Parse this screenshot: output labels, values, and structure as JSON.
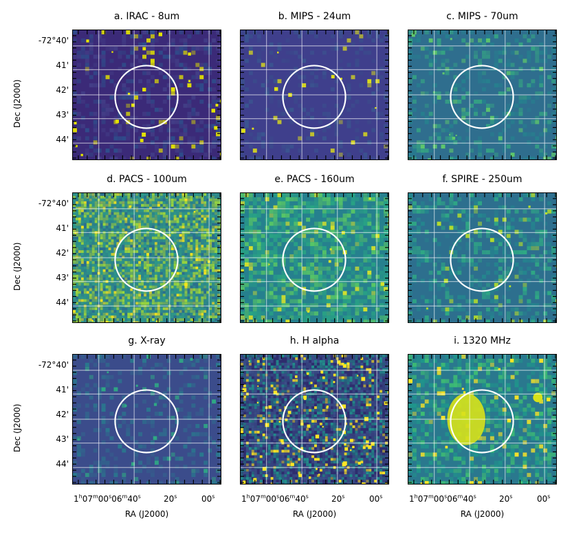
{
  "panels": [
    {
      "title": "a. IRAC - 8um",
      "colors": [
        "#3b2a78",
        "#433e87",
        "#2f4d8b"
      ],
      "speck": "#e4e400",
      "noise": 0.35
    },
    {
      "title": "b. MIPS - 24um",
      "colors": [
        "#3f3f8c",
        "#3a4c8c",
        "#3a5690"
      ],
      "speck": "#e0e018",
      "noise": 0.2
    },
    {
      "title": "c. MIPS - 70um",
      "colors": [
        "#2f6e8e",
        "#26808e",
        "#35a283"
      ],
      "speck": "#5fc86b",
      "noise": 0.3
    },
    {
      "title": "d. PACS - 100um",
      "colors": [
        "#2a6f8e",
        "#2f9b87",
        "#9ad73c"
      ],
      "speck": "#f2e51e",
      "noise": 0.9
    },
    {
      "title": "e. PACS - 160um",
      "colors": [
        "#26808e",
        "#29a384",
        "#57c566"
      ],
      "speck": "#d6e22b",
      "noise": 0.6
    },
    {
      "title": "f. SPIRE - 250um",
      "colors": [
        "#2d6f8e",
        "#24868e",
        "#2fa884"
      ],
      "speck": "#b5de2b",
      "noise": 0.35
    },
    {
      "title": "g. X-ray",
      "colors": [
        "#3b4c8b",
        "#33618d",
        "#2a788e"
      ],
      "speck": "#2fa884",
      "noise": 0.25
    },
    {
      "title": "h. H alpha",
      "colors": [
        "#2e2d6e",
        "#3b528b",
        "#21918c"
      ],
      "speck": "#fde725",
      "noise": 0.8
    },
    {
      "title": "i. 1320 MHz",
      "colors": [
        "#2a788e",
        "#1f968b",
        "#3dbc74"
      ],
      "speck": "#fde725",
      "noise": 0.5
    }
  ],
  "dec_ticks": [
    "-72°40'",
    "41'",
    "42'",
    "43'",
    "44'"
  ],
  "dec_axis_title": "Dec (J2000)",
  "ra_ticks": [
    {
      "main": "1",
      "sup1": "h",
      "mid": "07",
      "sup2": "m",
      "tail": "00",
      "sup3": "s",
      "extra": "06",
      "sup4": "m",
      "extra2": "40",
      "sup5": "s"
    },
    {
      "main": "20",
      "sup1": "s"
    },
    {
      "main": "00",
      "sup1": "s"
    }
  ],
  "ra_axis_title": "RA (J2000)"
}
